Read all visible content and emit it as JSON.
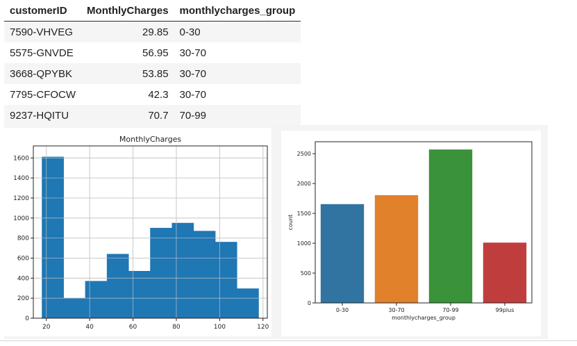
{
  "table": {
    "columns": [
      "customerID",
      "MonthlyCharges",
      "monthlycharges_group"
    ],
    "rows": [
      [
        "7590-VHVEG",
        "29.85",
        "0-30"
      ],
      [
        "5575-GNVDE",
        "56.95",
        "30-70"
      ],
      [
        "3668-QPYBK",
        "53.85",
        "30-70"
      ],
      [
        "7795-CFOCW",
        "42.3",
        "30-70"
      ],
      [
        "9237-HQITU",
        "70.7",
        "70-99"
      ]
    ]
  },
  "chart_data": [
    {
      "type": "bar",
      "title": "MonthlyCharges",
      "xlabel": "",
      "ylabel": "",
      "bin_edges": [
        18,
        28,
        38,
        48,
        58,
        68,
        78,
        88,
        98,
        108,
        118
      ],
      "values": [
        1610,
        200,
        370,
        640,
        470,
        900,
        950,
        870,
        760,
        295
      ],
      "xlim": [
        14,
        122
      ],
      "ylim": [
        0,
        1720
      ],
      "xticks": [
        20,
        40,
        60,
        80,
        100,
        120
      ],
      "yticks": [
        0,
        200,
        400,
        600,
        800,
        1000,
        1200,
        1400,
        1600
      ],
      "grid": true,
      "color": "#1f77b4"
    },
    {
      "type": "bar",
      "title": "",
      "xlabel": "monthlycharges_group",
      "ylabel": "count",
      "categories": [
        "0-30",
        "30-70",
        "70-99",
        "99plus"
      ],
      "values": [
        1655,
        1805,
        2570,
        1010
      ],
      "colors": [
        "#3274a1",
        "#e1812c",
        "#3a923a",
        "#c03d3e"
      ],
      "ylim": [
        0,
        2700
      ],
      "yticks": [
        0,
        500,
        1000,
        1500,
        2000,
        2500
      ],
      "grid": false
    }
  ]
}
